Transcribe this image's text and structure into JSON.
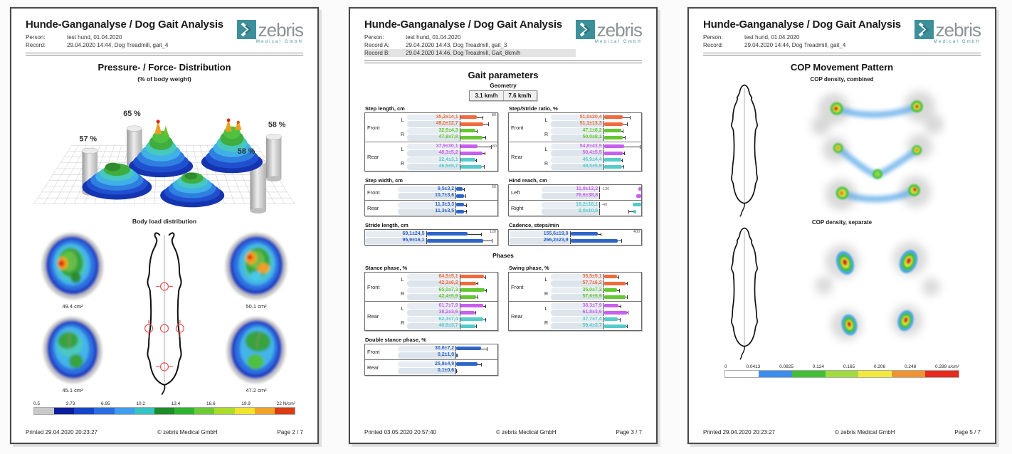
{
  "brand": {
    "name": "zebris",
    "sub": "Medical GmbH",
    "teal": "#3d9099",
    "gray": "#8b9396"
  },
  "doc_title": "Hunde-Ganganalyse / Dog Gait Analysis",
  "page1": {
    "meta": [
      {
        "label": "Person:",
        "value": "test hund, 01.04.2020"
      },
      {
        "label": "Record:",
        "value": "29.04.2020 14:44, Dog Treadmill, gait_4"
      }
    ],
    "title": "Pressure- / Force- Distribution",
    "subtitle": "(% of body weight)",
    "percents": [
      "57 %",
      "65 %",
      "58 %",
      "58 %"
    ],
    "body_load_title": "Body load distribution",
    "paw_areas": [
      "49.4 cm²",
      "50.1 cm²",
      "45.1 cm²",
      "47.2 cm²"
    ],
    "scale_labels": [
      "0.5",
      "3.73",
      "6.95",
      "10.2",
      "13.4",
      "16.6",
      "19.9",
      "22 N/cm²"
    ],
    "scale_colors": [
      "#c9c9c9",
      "#0b1f9a",
      "#1745c8",
      "#2d6ce2",
      "#3f9fee",
      "#38c3c3",
      "#1f8c2b",
      "#2fb42f",
      "#6ccb35",
      "#abdc2c",
      "#f0e42e",
      "#f0a229",
      "#d93b12"
    ],
    "footer": {
      "printed": "Printed  29.04.2020 20:23:27",
      "copy": "© zebris Medical GmbH",
      "page": "Page  2 / 7"
    }
  },
  "page2": {
    "meta": [
      {
        "label": "Person:",
        "value": "test hund, 01.04.2020"
      },
      {
        "label": "Record A:",
        "value": "29.04.2020 14:43, Dog Treadmill, gait_3"
      },
      {
        "label": "Record B:",
        "value": "29.04.2020 14:46, Dog Treadmill, Gait_8km/h"
      }
    ],
    "title": "Gait parameters",
    "geometry_label": "Geometry",
    "speed_buttons": [
      "3.1 km/h",
      "7.6 km/h"
    ],
    "phases_label": "Phases",
    "groups": [
      {
        "title": "Step length, cm",
        "axis": "80",
        "blocks": [
          {
            "label": "Front",
            "sides": [
              "L",
              "R"
            ],
            "rows": [
              {
                "v": "35,2±14,1",
                "c": "#f2693c",
                "f": 0.44,
                "e": 0.18
              },
              {
                "v": "49,0±12,7",
                "c": "#f2693c",
                "f": 0.61,
                "e": 0.16
              },
              {
                "v": "32,5±4,3",
                "c": "#64c832",
                "f": 0.41,
                "e": 0.05
              },
              {
                "v": "47,9±7,8",
                "c": "#64c832",
                "f": 0.6,
                "e": 0.1
              }
            ]
          },
          {
            "label": "Rear",
            "sides": [
              "L",
              "R"
            ],
            "rows": [
              {
                "v": "37,9±30,1",
                "c": "#c95ff0",
                "f": 0.47,
                "e": 0.38,
                "endnote": "+80"
              },
              {
                "v": "48,3±5,2",
                "c": "#c95ff0",
                "f": 0.6,
                "e": 0.07
              },
              {
                "v": "32,4±3,1",
                "c": "#55cbcb",
                "f": 0.41,
                "e": 0.04
              },
              {
                "v": "46,5±5,7",
                "c": "#55cbcb",
                "f": 0.58,
                "e": 0.07
              }
            ]
          }
        ]
      },
      {
        "title": "Step/Stride ratio, %",
        "axis": "",
        "blocks": [
          {
            "label": "Front",
            "sides": [
              "L",
              "R"
            ],
            "rows": [
              {
                "v": "51,0±20,4",
                "c": "#f2693c",
                "f": 0.51,
                "e": 0.2
              },
              {
                "v": "51,1±13,3",
                "c": "#f2693c",
                "f": 0.51,
                "e": 0.13
              },
              {
                "v": "47,1±6,2",
                "c": "#64c832",
                "f": 0.47,
                "e": 0.06
              },
              {
                "v": "50,0±8,1",
                "c": "#64c832",
                "f": 0.5,
                "e": 0.08
              }
            ]
          },
          {
            "label": "Rear",
            "sides": [
              "L",
              "R"
            ],
            "rows": [
              {
                "v": "54,8±43,5",
                "c": "#c95ff0",
                "f": 0.55,
                "e": 0.43
              },
              {
                "v": "50,4±5,5",
                "c": "#c95ff0",
                "f": 0.5,
                "e": 0.06
              },
              {
                "v": "46,9±4,4",
                "c": "#55cbcb",
                "f": 0.47,
                "e": 0.04
              },
              {
                "v": "48,5±5,9",
                "c": "#55cbcb",
                "f": 0.49,
                "e": 0.06
              }
            ]
          }
        ]
      },
      {
        "title": "Step width, cm",
        "axis": "60",
        "blocks": [
          {
            "label": "Front",
            "sides": null,
            "rows": [
              {
                "v": "9,5±3,2",
                "c": "#2f64c8",
                "f": 0.16,
                "e": 0.05
              },
              {
                "v": "10,7±3,6",
                "c": "#2f64c8",
                "f": 0.18,
                "e": 0.06
              }
            ]
          },
          {
            "label": "Rear",
            "sides": null,
            "rows": [
              {
                "v": "11,3±3,3",
                "c": "#2f64c8",
                "f": 0.19,
                "e": 0.06
              },
              {
                "v": "11,3±3,5",
                "c": "#2f64c8",
                "f": 0.19,
                "e": 0.06
              }
            ]
          }
        ]
      },
      {
        "title": "Hind reach, cm",
        "axis": "",
        "blocks": [
          {
            "label": "Left",
            "sides": null,
            "rows": [
              {
                "v": "11,8±12,2",
                "c": "#c95ff0",
                "f": 0.07,
                "e": 0,
                "anchor": "right",
                "note": "-130"
              },
              {
                "v": "76,6±38,8",
                "c": "#c95ff0",
                "f": 0.12,
                "e": 0,
                "anchor": "right"
              }
            ]
          },
          {
            "label": "Right",
            "sides": null,
            "rows": [
              {
                "v": "19,2±18,1",
                "c": "#55cbcb",
                "f": 0.2,
                "e": 0,
                "anchor": "right",
                "note": "-40"
              },
              {
                "v": "2,0±10,6",
                "c": "#55cbcb",
                "f": 0.07,
                "e": 0.12,
                "anchor": "right",
                "roff": 0.12
              }
            ]
          }
        ]
      },
      {
        "title": "Stride length, cm",
        "axis": "120",
        "blocks": [
          {
            "label": "",
            "sides": null,
            "rows": [
              {
                "v": "69,1±24,5",
                "c": "#2f64c8",
                "f": 0.58,
                "e": 0.2
              },
              {
                "v": "95,9±16,1",
                "c": "#2f64c8",
                "f": 0.8,
                "e": 0.13
              }
            ]
          }
        ]
      },
      {
        "title": "Cadence, steps/min",
        "axis": "400",
        "blocks": [
          {
            "label": "",
            "sides": null,
            "rows": [
              {
                "v": "155,6±19,0",
                "c": "#2f64c8",
                "f": 0.39,
                "e": 0.05
              },
              {
                "v": "266,2±23,9",
                "c": "#2f64c8",
                "f": 0.67,
                "e": 0.06
              }
            ]
          }
        ]
      },
      {
        "title": "Stance phase, %",
        "axis": "",
        "blocks": [
          {
            "label": "Front",
            "sides": [
              "L",
              "R"
            ],
            "rows": [
              {
                "v": "64,5±5,1",
                "c": "#f2693c",
                "f": 0.645,
                "e": 0.051
              },
              {
                "v": "42,3±6,2",
                "c": "#f2693c",
                "f": 0.423,
                "e": 0.062
              },
              {
                "v": "65,0±7,3",
                "c": "#64c832",
                "f": 0.65,
                "e": 0.073
              },
              {
                "v": "42,4±5,9",
                "c": "#64c832",
                "f": 0.424,
                "e": 0.059
              }
            ]
          },
          {
            "label": "Rear",
            "sides": [
              "L",
              "R"
            ],
            "rows": [
              {
                "v": "61,7±7,9",
                "c": "#c95ff0",
                "f": 0.617,
                "e": 0.079
              },
              {
                "v": "38,2±3,6",
                "c": "#c95ff0",
                "f": 0.382,
                "e": 0.036
              },
              {
                "v": "62,3±7,4",
                "c": "#55cbcb",
                "f": 0.623,
                "e": 0.074
              },
              {
                "v": "40,6±3,7",
                "c": "#55cbcb",
                "f": 0.406,
                "e": 0.037
              }
            ]
          }
        ]
      },
      {
        "title": "Swing phase, %",
        "axis": "",
        "blocks": [
          {
            "label": "Front",
            "sides": [
              "L",
              "R"
            ],
            "rows": [
              {
                "v": "35,5±5,1",
                "c": "#f2693c",
                "f": 0.355,
                "e": 0.051
              },
              {
                "v": "57,7±6,2",
                "c": "#f2693c",
                "f": 0.577,
                "e": 0.062
              },
              {
                "v": "35,0±7,3",
                "c": "#64c832",
                "f": 0.35,
                "e": 0.073
              },
              {
                "v": "57,6±5,9",
                "c": "#64c832",
                "f": 0.576,
                "e": 0.059
              }
            ]
          },
          {
            "label": "Rear",
            "sides": [
              "L",
              "R"
            ],
            "rows": [
              {
                "v": "38,3±7,9",
                "c": "#c95ff0",
                "f": 0.383,
                "e": 0.079
              },
              {
                "v": "61,8±3,6",
                "c": "#c95ff0",
                "f": 0.618,
                "e": 0.036
              },
              {
                "v": "37,7±7,4",
                "c": "#55cbcb",
                "f": 0.377,
                "e": 0.074
              },
              {
                "v": "59,4±3,7",
                "c": "#55cbcb",
                "f": 0.594,
                "e": 0.037
              }
            ]
          }
        ]
      },
      {
        "title": "Double stance phase, %",
        "axis": "",
        "blocks": [
          {
            "label": "Front",
            "sides": null,
            "rows": [
              {
                "v": "30,6±7,2",
                "c": "#2f64c8",
                "f": 0.61,
                "e": 0.14
              },
              {
                "v": "0,2±1,0",
                "c": "#2f64c8",
                "f": 0.01,
                "e": 0.02
              }
            ]
          },
          {
            "label": "Rear",
            "sides": null,
            "rows": [
              {
                "v": "25,8±4,9",
                "c": "#2f64c8",
                "f": 0.52,
                "e": 0.1
              },
              {
                "v": "0,1±0,6",
                "c": "#2f64c8",
                "f": 0.01,
                "e": 0.01
              }
            ]
          }
        ]
      }
    ],
    "footer": {
      "printed": "Printed  03.05.2020 20:57:40",
      "copy": "© zebris Medical GmbH",
      "page": "Page  3 / 7"
    }
  },
  "page3": {
    "meta": [
      {
        "label": "Person:",
        "value": "test hund, 01.04.2020"
      },
      {
        "label": "Record:",
        "value": "29.04.2020 14:44, Dog Treadmill, gait_4"
      }
    ],
    "title": "COP Movement Pattern",
    "combined_label": "COP density, combined",
    "separate_label": "COP density, separate",
    "scale_labels": [
      "0",
      "0.0413",
      "0.0825",
      "0.124",
      "0.165",
      "0.206",
      "0.248",
      "0.289 s/cm²"
    ],
    "scale_colors": [
      "#ffffff",
      "#3b8ef0",
      "#42c034",
      "#a2dc3c",
      "#f2ea3a",
      "#f29432",
      "#e8291c"
    ],
    "footer": {
      "printed": "Printed  29.04.2020 20:23:27",
      "copy": "© zebris Medical GmbH",
      "page": "Page  5 / 7"
    }
  }
}
